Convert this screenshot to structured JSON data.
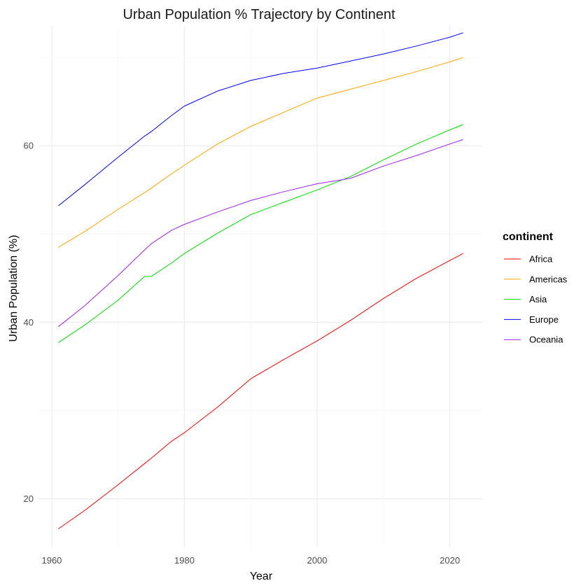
{
  "chart_data": {
    "type": "line",
    "title": "Urban Population % Trajectory by Continent",
    "xlabel": "Year",
    "ylabel": "Urban Population (%)",
    "xlim": [
      1958,
      2025
    ],
    "ylim": [
      14.5,
      73.5
    ],
    "x_ticks": [
      1960,
      1980,
      2000,
      2020
    ],
    "y_ticks": [
      20,
      40,
      60
    ],
    "grid": true,
    "legend": {
      "title": "continent",
      "placement": "right"
    },
    "x": [
      1961,
      1965,
      1970,
      1974,
      1975,
      1978,
      1980,
      1985,
      1990,
      1995,
      2000,
      2005,
      2010,
      2015,
      2020,
      2022
    ],
    "series": [
      {
        "name": "Africa",
        "color": "#ff0000",
        "values": [
          16.6,
          18.7,
          21.6,
          24.0,
          24.6,
          26.5,
          27.5,
          30.4,
          33.6,
          35.8,
          37.9,
          40.2,
          42.7,
          45.0,
          47.0,
          47.8
        ]
      },
      {
        "name": "Americas",
        "color": "#ffa500",
        "values": [
          48.5,
          50.3,
          52.8,
          54.7,
          55.2,
          56.8,
          57.8,
          60.2,
          62.2,
          63.8,
          65.4,
          66.4,
          67.4,
          68.4,
          69.5,
          70.0
        ]
      },
      {
        "name": "Asia",
        "color": "#00dd00",
        "values": [
          37.7,
          39.7,
          42.5,
          45.2,
          45.2,
          46.7,
          47.8,
          50.1,
          52.2,
          53.6,
          55.0,
          56.5,
          58.4,
          60.2,
          61.8,
          62.4
        ]
      },
      {
        "name": "Europe",
        "color": "#0000ff",
        "values": [
          53.2,
          55.6,
          58.7,
          61.1,
          61.6,
          63.4,
          64.5,
          66.2,
          67.4,
          68.2,
          68.8,
          69.6,
          70.4,
          71.3,
          72.3,
          72.8
        ]
      },
      {
        "name": "Oceania",
        "color": "#a020f0",
        "values": [
          39.5,
          41.9,
          45.3,
          48.2,
          48.9,
          50.4,
          51.1,
          52.5,
          53.8,
          54.8,
          55.7,
          56.3,
          57.7,
          58.9,
          60.2,
          60.7
        ]
      }
    ]
  }
}
